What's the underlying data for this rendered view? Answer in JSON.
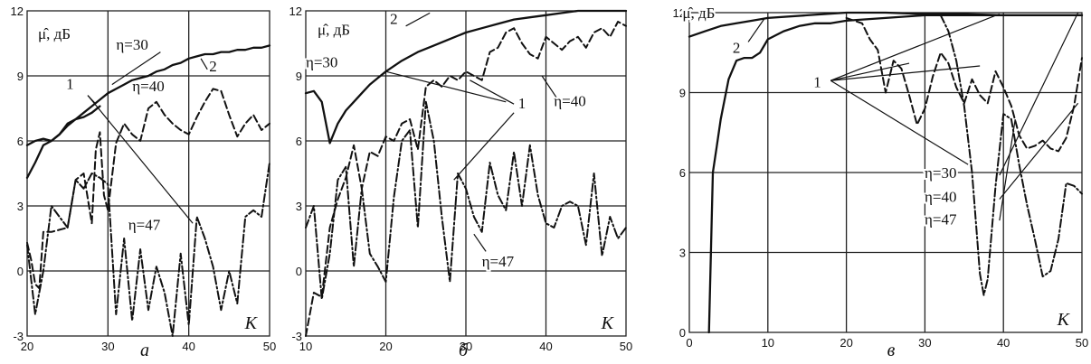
{
  "chart_data": [
    {
      "id": "a",
      "type": "line",
      "caption": "а",
      "ylabel": "μ̂, дБ",
      "xlabel": "K",
      "xlim": [
        20,
        50
      ],
      "ylim": [
        -3,
        12
      ],
      "x_ticks": [
        20,
        30,
        40,
        50
      ],
      "y_ticks": [
        -3,
        0,
        3,
        6,
        9,
        12
      ],
      "grid": true,
      "series": [
        {
          "name": "2",
          "style": "solid",
          "x": [
            20,
            21,
            22,
            23,
            24,
            25,
            26,
            27,
            28,
            29,
            30,
            31,
            32,
            33,
            34,
            35,
            36,
            37,
            38,
            39,
            40,
            41,
            42,
            43,
            44,
            45,
            46,
            47,
            48,
            49,
            50
          ],
          "y": [
            4.3,
            5.0,
            5.8,
            6.0,
            6.3,
            6.7,
            7.0,
            7.3,
            7.6,
            7.9,
            8.2,
            8.4,
            8.6,
            8.8,
            8.9,
            9.0,
            9.2,
            9.3,
            9.5,
            9.6,
            9.8,
            9.9,
            10.0,
            10.0,
            10.1,
            10.1,
            10.2,
            10.2,
            10.3,
            10.3,
            10.4
          ]
        },
        {
          "name": "η=30",
          "style": "solid",
          "x": [
            20,
            21,
            22,
            23,
            24,
            25,
            26,
            27,
            28,
            29
          ],
          "y": [
            5.8,
            6.0,
            6.1,
            6.0,
            6.3,
            6.8,
            7.0,
            7.1,
            7.3,
            7.6
          ]
        },
        {
          "name": "η=40",
          "style": "dashed",
          "x": [
            20,
            20.5,
            21,
            21.5,
            22,
            23,
            24,
            25,
            26,
            27,
            28,
            28.5,
            29,
            29.5,
            30,
            31,
            32,
            33,
            34,
            35,
            36,
            37,
            38,
            39,
            40,
            41,
            42,
            43,
            44,
            45,
            46,
            47,
            48,
            49,
            50
          ],
          "y": [
            1.3,
            0.5,
            -0.6,
            -0.8,
            1.8,
            1.8,
            1.9,
            2.0,
            4.2,
            4.5,
            2.2,
            5.6,
            6.4,
            3.5,
            2.8,
            5.9,
            6.8,
            6.3,
            6.0,
            7.5,
            7.8,
            7.2,
            6.8,
            6.5,
            6.3,
            7.1,
            7.8,
            8.4,
            8.3,
            7.2,
            6.2,
            6.8,
            7.2,
            6.5,
            6.8
          ]
        },
        {
          "name": "η=47",
          "style": "dashdot",
          "x": [
            20,
            21,
            22,
            23,
            24,
            25,
            26,
            27,
            28,
            29,
            30,
            31,
            32,
            33,
            34,
            35,
            36,
            37,
            38,
            39,
            40,
            41,
            42,
            43,
            44,
            45,
            46,
            47,
            48,
            49,
            50
          ],
          "y": [
            1.2,
            -2.0,
            0.0,
            3.0,
            2.5,
            2.0,
            4.2,
            3.8,
            4.5,
            4.3,
            4.0,
            -2.0,
            1.5,
            -2.3,
            1.0,
            -1.8,
            0.2,
            -1.0,
            -3.0,
            0.8,
            -2.5,
            2.5,
            1.5,
            0.2,
            -1.8,
            0.0,
            -1.5,
            2.5,
            2.8,
            2.5,
            5.0
          ]
        }
      ],
      "annotations": [
        {
          "text": "η=30",
          "x": 33,
          "y": 10.2
        },
        {
          "text": "2",
          "x": 43,
          "y": 9.2
        },
        {
          "text": "1",
          "x": 25.3,
          "y": 8.4
        },
        {
          "text": "η=40",
          "x": 35,
          "y": 8.3
        },
        {
          "text": "η=47",
          "x": 34.5,
          "y": 1.9
        }
      ],
      "arrows": [
        {
          "from": [
            36.5,
            10.1
          ],
          "to": [
            30.5,
            8.6
          ]
        },
        {
          "from": [
            42.3,
            9.3
          ],
          "to": [
            41.5,
            9.8
          ]
        },
        {
          "from": [
            27.5,
            8.1
          ],
          "to": [
            28.5,
            7.7
          ]
        },
        {
          "from": [
            27.5,
            8.1
          ],
          "to": [
            40.5,
            2.2
          ]
        }
      ]
    },
    {
      "id": "b",
      "type": "line",
      "caption": "б",
      "ylabel": "μ̂, дБ",
      "xlabel": "K",
      "xlim": [
        10,
        50
      ],
      "ylim": [
        -3,
        12
      ],
      "x_ticks": [
        10,
        20,
        30,
        40,
        50
      ],
      "y_ticks": [
        -3,
        0,
        3,
        6,
        9,
        12
      ],
      "grid": true,
      "series": [
        {
          "name": "2",
          "style": "solid",
          "x": [
            10,
            11,
            12,
            13,
            14,
            15,
            16,
            17,
            18,
            19,
            20,
            22,
            24,
            26,
            28,
            30,
            32,
            34,
            36,
            38,
            40,
            42,
            44,
            46,
            48,
            50
          ],
          "y": [
            8.2,
            8.3,
            7.8,
            5.9,
            6.8,
            7.4,
            7.8,
            8.2,
            8.6,
            8.9,
            9.2,
            9.7,
            10.1,
            10.4,
            10.7,
            11.0,
            11.2,
            11.4,
            11.6,
            11.7,
            11.8,
            11.9,
            12.0,
            12.0,
            12.0,
            12.0
          ]
        },
        {
          "name": "η=40",
          "style": "dashed",
          "x": [
            10,
            11,
            12,
            13,
            14,
            15,
            16,
            17,
            18,
            19,
            20,
            21,
            22,
            23,
            24,
            25,
            26,
            27,
            28,
            29,
            30,
            31,
            32,
            33,
            34,
            35,
            36,
            37,
            38,
            39,
            40,
            41,
            42,
            43,
            44,
            45,
            46,
            47,
            48,
            49,
            50
          ],
          "y": [
            -3.0,
            -1.0,
            -1.2,
            2.0,
            3.3,
            4.3,
            5.8,
            3.8,
            5.5,
            5.3,
            6.2,
            6.0,
            6.8,
            7.0,
            5.6,
            8.5,
            8.8,
            8.5,
            9.0,
            8.8,
            9.2,
            9.0,
            8.8,
            10.1,
            10.3,
            11.0,
            11.2,
            10.5,
            10.0,
            9.8,
            10.8,
            10.5,
            10.2,
            10.6,
            10.8,
            10.3,
            11.0,
            11.2,
            10.8,
            11.5,
            11.3
          ]
        },
        {
          "name": "η=47",
          "style": "dashdot",
          "x": [
            10,
            11,
            12,
            13,
            14,
            15,
            16,
            17,
            18,
            19,
            20,
            21,
            22,
            23,
            24,
            25,
            26,
            27,
            28,
            29,
            30,
            31,
            32,
            33,
            34,
            35,
            36,
            37,
            38,
            39,
            40,
            41,
            42,
            43,
            44,
            45,
            46,
            47,
            48,
            49,
            50
          ],
          "y": [
            2.0,
            3.0,
            -1.3,
            0.8,
            4.2,
            4.8,
            0.2,
            3.8,
            0.8,
            0.2,
            -0.5,
            3.4,
            6.0,
            6.5,
            2.0,
            7.8,
            6.0,
            2.5,
            -0.5,
            4.5,
            3.8,
            2.5,
            1.8,
            5.0,
            3.5,
            2.8,
            5.5,
            3.0,
            5.8,
            3.5,
            2.2,
            2.0,
            3.0,
            3.2,
            3.0,
            1.2,
            4.5,
            0.7,
            2.5,
            1.5,
            2.0
          ]
        }
      ],
      "annotations": [
        {
          "text": "μ̂, дБ",
          "x": 13.5,
          "y": 10.9
        },
        {
          "text": "2",
          "x": 21,
          "y": 11.4
        },
        {
          "text": "η=30",
          "x": 12,
          "y": 9.4
        },
        {
          "text": "1",
          "x": 37,
          "y": 7.5
        },
        {
          "text": "η=40",
          "x": 43,
          "y": 7.6
        },
        {
          "text": "η=47",
          "x": 34,
          "y": 0.2
        }
      ],
      "arrows": [
        {
          "from": [
            22.5,
            11.3
          ],
          "to": [
            25.5,
            11.9
          ]
        },
        {
          "from": [
            20,
            9.2
          ],
          "to": [
            35,
            7.8
          ]
        },
        {
          "from": [
            36,
            7.7
          ],
          "to": [
            30.5,
            8.8
          ]
        },
        {
          "from": [
            36,
            7.3
          ],
          "to": [
            28.5,
            4.2
          ]
        },
        {
          "from": [
            41.5,
            7.9
          ],
          "to": [
            39.5,
            9.0
          ]
        },
        {
          "from": [
            32.5,
            0.9
          ],
          "to": [
            31,
            1.7
          ]
        }
      ]
    },
    {
      "id": "v",
      "type": "line",
      "caption": "в",
      "ylabel": "μ̂, дБ",
      "xlabel": "K",
      "xlim": [
        0,
        50
      ],
      "ylim": [
        0,
        12
      ],
      "x_ticks": [
        0,
        10,
        20,
        30,
        40,
        50
      ],
      "y_ticks": [
        0,
        3,
        6,
        9,
        12
      ],
      "grid": true,
      "series": [
        {
          "name": "2",
          "style": "solid",
          "x": [
            2.5,
            3,
            3.5,
            4,
            5,
            6,
            7,
            8,
            9,
            10,
            12,
            14,
            16,
            18,
            20,
            25,
            30,
            35,
            40,
            45,
            50
          ],
          "y": [
            0.0,
            6.0,
            7.0,
            8.0,
            9.5,
            10.2,
            10.3,
            10.3,
            10.5,
            11.0,
            11.3,
            11.5,
            11.6,
            11.6,
            11.7,
            11.8,
            11.9,
            11.9,
            11.9,
            11.9,
            11.9
          ]
        },
        {
          "name": "η=30",
          "style": "solid",
          "x": [
            0,
            2,
            4,
            6,
            8,
            10,
            15,
            20,
            25,
            30,
            35,
            40,
            45,
            50
          ],
          "y": [
            11.1,
            11.3,
            11.5,
            11.6,
            11.7,
            11.8,
            11.9,
            12.0,
            12.0,
            11.95,
            11.95,
            11.9,
            11.9,
            11.9
          ]
        },
        {
          "name": "η=40",
          "style": "dashed",
          "x": [
            20,
            21,
            22,
            23,
            24,
            25,
            26,
            27,
            28,
            29,
            30,
            31,
            32,
            33,
            34,
            35,
            36,
            37,
            38,
            39,
            40,
            41,
            42,
            43,
            44,
            45,
            46,
            47,
            48,
            49,
            50
          ],
          "y": [
            11.8,
            11.7,
            11.6,
            11.0,
            10.6,
            9.0,
            10.2,
            9.9,
            8.9,
            7.8,
            8.4,
            9.6,
            10.5,
            10.1,
            9.2,
            8.6,
            9.5,
            8.9,
            8.6,
            9.8,
            9.2,
            8.5,
            7.4,
            6.9,
            7.0,
            7.2,
            6.9,
            6.8,
            7.3,
            8.5,
            10.3
          ]
        },
        {
          "name": "η=47",
          "style": "dashdot",
          "x": [
            32,
            33,
            34,
            35,
            36,
            37,
            37.5,
            38,
            39,
            40,
            41,
            42,
            43,
            44,
            45,
            46,
            47,
            48,
            49,
            50
          ],
          "y": [
            11.9,
            11.3,
            10.2,
            8.5,
            6.0,
            2.2,
            1.4,
            2.0,
            5.5,
            8.2,
            8.0,
            6.3,
            4.8,
            3.5,
            2.1,
            2.3,
            3.5,
            5.6,
            5.5,
            5.2
          ]
        }
      ],
      "annotations": [
        {
          "text": "μ̂, дБ",
          "x": 1.2,
          "y": 11.8
        },
        {
          "text": "2",
          "x": 6,
          "y": 10.5
        },
        {
          "text": "1",
          "x": 16.3,
          "y": 9.2
        },
        {
          "text": "η=30",
          "x": 32,
          "y": 5.8
        },
        {
          "text": "η=40",
          "x": 32,
          "y": 4.9
        },
        {
          "text": "η=47",
          "x": 32,
          "y": 4.05
        }
      ],
      "arrows": [
        {
          "from": [
            7.5,
            10.9
          ],
          "to": [
            9.5,
            11.75
          ]
        },
        {
          "from": [
            18,
            9.45
          ],
          "to": [
            39.5,
            11.95
          ]
        },
        {
          "from": [
            18,
            9.45
          ],
          "to": [
            37,
            10.0
          ]
        },
        {
          "from": [
            18,
            9.45
          ],
          "to": [
            28,
            10.1
          ]
        },
        {
          "from": [
            18,
            9.45
          ],
          "to": [
            35.5,
            6.3
          ]
        },
        {
          "from": [
            39.5,
            5.9
          ],
          "to": [
            49.5,
            12.0
          ]
        },
        {
          "from": [
            39.5,
            5.0
          ],
          "to": [
            49.5,
            8.6
          ]
        },
        {
          "from": [
            39.5,
            4.2
          ],
          "to": [
            41.5,
            8.0
          ]
        }
      ]
    }
  ]
}
